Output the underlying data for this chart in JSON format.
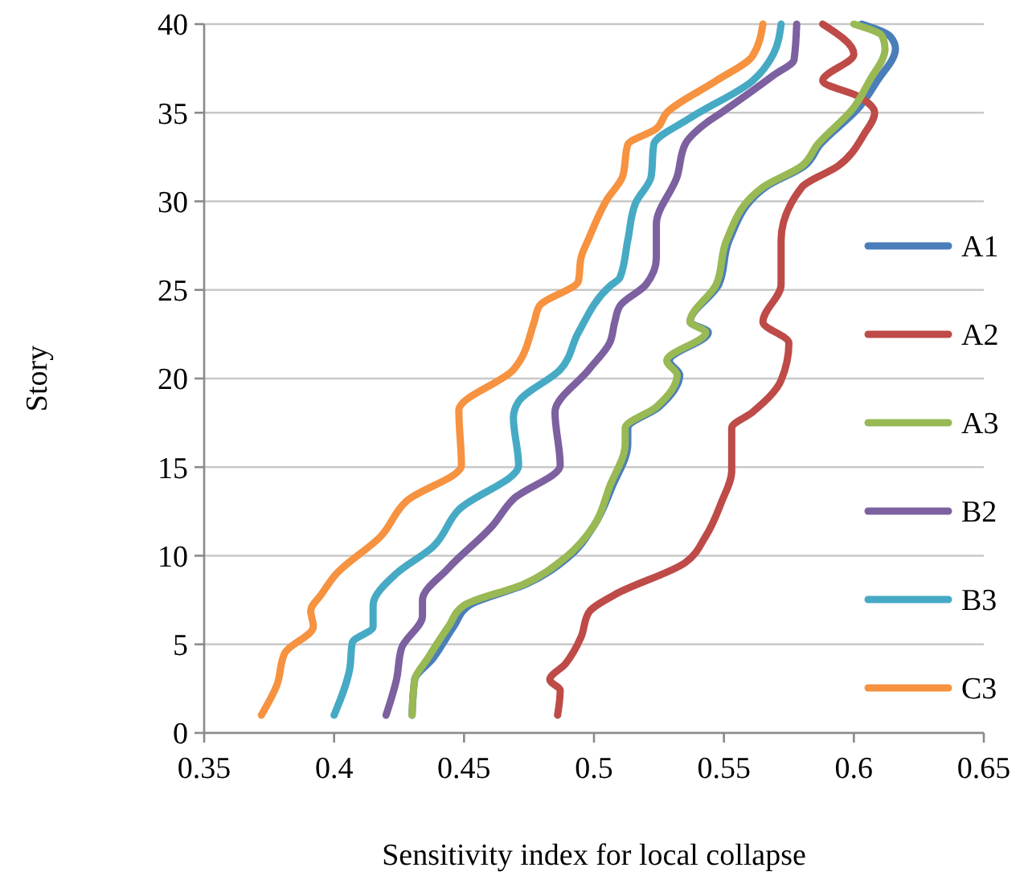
{
  "chart_data": {
    "type": "line",
    "xlabel": "Sensitivity index for local collapse",
    "ylabel": "Story",
    "xlim": [
      0.35,
      0.65
    ],
    "xticks": [
      {
        "value": 0.35,
        "label": "0.35"
      },
      {
        "value": 0.4,
        "label": "0.4"
      },
      {
        "value": 0.45,
        "label": "0.45"
      },
      {
        "value": 0.5,
        "label": "0.5"
      },
      {
        "value": 0.55,
        "label": "0.55"
      },
      {
        "value": 0.6,
        "label": "0.6"
      },
      {
        "value": 0.65,
        "label": "0.65"
      }
    ],
    "ylim": [
      0,
      40
    ],
    "yticks": [
      0,
      5,
      10,
      15,
      20,
      25,
      30,
      35,
      40
    ],
    "grid": "y",
    "legend": "right",
    "marker": "none",
    "line_style": "solid",
    "series": [
      {
        "name": "A1",
        "color": "#4a7ebb",
        "x": [
          0.43,
          0.431,
          0.438,
          0.446,
          0.452,
          0.474,
          0.49,
          0.5,
          0.507,
          0.513,
          0.513,
          0.525,
          0.533,
          0.529,
          0.544,
          0.537,
          0.548,
          0.552,
          0.566,
          0.581,
          0.587,
          0.602,
          0.609,
          0.616,
          0.614,
          0.603
        ],
        "values": [
          1,
          3,
          4.2,
          6,
          7.2,
          8.4,
          9.9,
          11.7,
          13.9,
          16.3,
          17.2,
          18.4,
          20.2,
          21,
          22.6,
          23.2,
          25.3,
          27.8,
          30.8,
          32,
          33.2,
          35.3,
          36.8,
          38.6,
          39.3,
          40
        ]
      },
      {
        "name": "A2",
        "color": "#be4b48",
        "x": [
          0.486,
          0.487,
          0.483,
          0.489,
          0.495,
          0.498,
          0.508,
          0.535,
          0.543,
          0.549,
          0.553,
          0.553,
          0.561,
          0.572,
          0.575,
          0.565,
          0.572,
          0.572,
          0.58,
          0.594,
          0.604,
          0.608,
          0.602,
          0.588,
          0.6,
          0.588
        ],
        "values": [
          1,
          2.4,
          3,
          3.9,
          5.4,
          6.8,
          7.8,
          9.6,
          11.1,
          13,
          14.8,
          17.2,
          18.1,
          19.9,
          22,
          23.2,
          25.3,
          27.8,
          30.8,
          32,
          33.8,
          35,
          35.9,
          36.8,
          38.3,
          40
        ]
      },
      {
        "name": "A3",
        "color": "#98b954",
        "x": [
          0.43,
          0.431,
          0.436,
          0.444,
          0.45,
          0.473,
          0.489,
          0.5,
          0.506,
          0.512,
          0.512,
          0.524,
          0.532,
          0.528,
          0.543,
          0.537,
          0.547,
          0.551,
          0.565,
          0.58,
          0.586,
          0.6,
          0.606,
          0.612,
          0.611,
          0.6
        ],
        "values": [
          1,
          3,
          4.2,
          6,
          7.2,
          8.4,
          9.9,
          11.7,
          13.9,
          16.3,
          17.2,
          18.4,
          20.2,
          21,
          22.6,
          23.2,
          25.3,
          27.8,
          30.8,
          32,
          33.2,
          35.3,
          36.8,
          38.6,
          39.3,
          40
        ]
      },
      {
        "name": "B2",
        "color": "#7d60a0",
        "x": [
          0.42,
          0.424,
          0.426,
          0.434,
          0.434,
          0.444,
          0.461,
          0.469,
          0.487,
          0.485,
          0.498,
          0.506,
          0.508,
          0.51,
          0.52,
          0.524,
          0.524,
          0.532,
          0.535,
          0.543,
          0.549,
          0.569,
          0.577,
          0.578
        ],
        "values": [
          1,
          3,
          4.8,
          6.6,
          7.5,
          9.3,
          11.7,
          13.2,
          15.1,
          18.1,
          20.5,
          22,
          23.2,
          24.1,
          25.3,
          26.8,
          28.7,
          31.4,
          33.2,
          34.4,
          35,
          37.1,
          38,
          40
        ]
      },
      {
        "name": "B3",
        "color": "#46aac5",
        "x": [
          0.4,
          0.406,
          0.407,
          0.415,
          0.415,
          0.424,
          0.438,
          0.448,
          0.471,
          0.469,
          0.471,
          0.487,
          0.494,
          0.506,
          0.51,
          0.513,
          0.516,
          0.522,
          0.523,
          0.537,
          0.561,
          0.569,
          0.572
        ],
        "values": [
          1,
          3.6,
          5.1,
          6,
          7.2,
          9,
          10.5,
          12.6,
          15.1,
          17.8,
          18.7,
          20.5,
          22.6,
          25.2,
          25.7,
          27.8,
          29.9,
          31.4,
          33.2,
          34.7,
          36.8,
          38.3,
          40
        ]
      },
      {
        "name": "C3",
        "color": "#f69240",
        "x": [
          0.372,
          0.378,
          0.381,
          0.392,
          0.391,
          0.395,
          0.401,
          0.418,
          0.428,
          0.449,
          0.448,
          0.469,
          0.477,
          0.479,
          0.494,
          0.495,
          0.498,
          0.505,
          0.511,
          0.513,
          0.524,
          0.528,
          0.547,
          0.561,
          0.565
        ],
        "values": [
          1,
          2.7,
          4.5,
          6,
          6.9,
          7.8,
          9,
          11.1,
          13.1,
          15.1,
          18.2,
          20.5,
          23.2,
          24.1,
          25.5,
          26.8,
          27.9,
          30.1,
          31.4,
          33.2,
          34.1,
          35,
          36.8,
          38.2,
          40
        ]
      }
    ]
  }
}
